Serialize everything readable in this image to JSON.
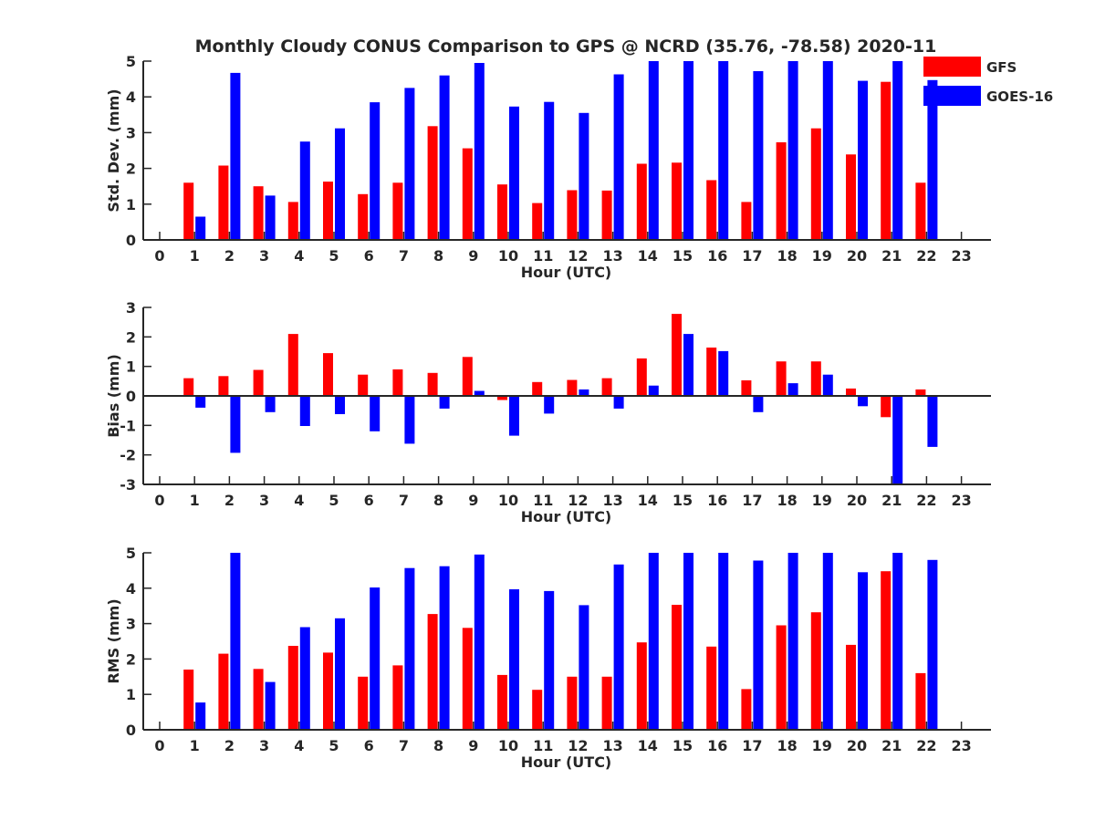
{
  "title": "Monthly Cloudy CONUS Comparison to GPS @ NCRD (35.76, -78.58) 2020-11",
  "colors": {
    "GFS": "#ff0000",
    "GOES-16": "#0000ff",
    "axis": "#262626"
  },
  "chart_data": [
    {
      "type": "bar",
      "ylabel": "Std. Dev. (mm)",
      "xlabel": "Hour (UTC)",
      "ylim": [
        0,
        5
      ],
      "yticks": [
        "0",
        "1",
        "2",
        "3",
        "4",
        "5"
      ],
      "categories": [
        "0",
        "1",
        "2",
        "3",
        "4",
        "5",
        "6",
        "7",
        "8",
        "9",
        "10",
        "11",
        "12",
        "13",
        "14",
        "15",
        "16",
        "17",
        "18",
        "19",
        "20",
        "21",
        "22",
        "23"
      ],
      "legend": {
        "position": "top-right",
        "entries": [
          "GFS",
          "GOES-16"
        ]
      },
      "series": [
        {
          "name": "GFS",
          "values": [
            null,
            1.6,
            2.08,
            1.5,
            1.06,
            1.63,
            1.28,
            1.6,
            3.18,
            2.56,
            1.55,
            1.03,
            1.39,
            1.38,
            2.13,
            2.16,
            1.67,
            1.06,
            2.73,
            3.12,
            2.39,
            4.42,
            1.6,
            null
          ]
        },
        {
          "name": "GOES-16",
          "values": [
            null,
            0.65,
            4.67,
            1.24,
            2.75,
            3.12,
            3.85,
            4.25,
            4.6,
            4.95,
            3.73,
            3.86,
            3.55,
            4.63,
            5,
            5,
            5,
            4.72,
            5,
            5,
            4.45,
            5,
            4.47,
            null
          ]
        }
      ]
    },
    {
      "type": "bar",
      "ylabel": "Bias (mm)",
      "xlabel": "Hour (UTC)",
      "ylim": [
        -3,
        3
      ],
      "yticks": [
        "-3",
        "-2",
        "-1",
        "0",
        "1",
        "2",
        "3"
      ],
      "categories": [
        "0",
        "1",
        "2",
        "3",
        "4",
        "5",
        "6",
        "7",
        "8",
        "9",
        "10",
        "11",
        "12",
        "13",
        "14",
        "15",
        "16",
        "17",
        "18",
        "19",
        "20",
        "21",
        "22",
        "23"
      ],
      "series": [
        {
          "name": "GFS",
          "values": [
            null,
            0.6,
            0.67,
            0.88,
            2.1,
            1.45,
            0.72,
            0.9,
            0.78,
            1.32,
            -0.14,
            0.47,
            0.54,
            0.6,
            1.27,
            2.78,
            1.64,
            0.53,
            1.17,
            1.17,
            0.25,
            -0.72,
            0.22,
            null
          ]
        },
        {
          "name": "GOES-16",
          "values": [
            null,
            -0.4,
            -1.93,
            -0.55,
            -1.02,
            -0.62,
            -1.2,
            -1.62,
            -0.43,
            0.17,
            -1.35,
            -0.6,
            0.22,
            -0.43,
            0.35,
            2.1,
            1.52,
            -0.55,
            0.43,
            0.72,
            -0.35,
            -3,
            -1.73,
            null
          ]
        }
      ]
    },
    {
      "type": "bar",
      "ylabel": "RMS (mm)",
      "xlabel": "Hour (UTC)",
      "ylim": [
        0,
        5
      ],
      "yticks": [
        "0",
        "1",
        "2",
        "3",
        "4",
        "5"
      ],
      "categories": [
        "0",
        "1",
        "2",
        "3",
        "4",
        "5",
        "6",
        "7",
        "8",
        "9",
        "10",
        "11",
        "12",
        "13",
        "14",
        "15",
        "16",
        "17",
        "18",
        "19",
        "20",
        "21",
        "22",
        "23"
      ],
      "series": [
        {
          "name": "GFS",
          "values": [
            null,
            1.7,
            2.15,
            1.72,
            2.37,
            2.18,
            1.5,
            1.82,
            3.27,
            2.88,
            1.55,
            1.13,
            1.5,
            1.5,
            2.47,
            3.53,
            2.35,
            1.15,
            2.95,
            3.32,
            2.4,
            4.48,
            1.6,
            null
          ]
        },
        {
          "name": "GOES-16",
          "values": [
            null,
            0.77,
            5,
            1.35,
            2.9,
            3.15,
            4.02,
            4.57,
            4.62,
            4.95,
            3.97,
            3.92,
            3.52,
            4.67,
            5,
            5,
            5,
            4.78,
            5,
            5,
            4.45,
            5,
            4.8,
            null
          ]
        }
      ]
    }
  ]
}
